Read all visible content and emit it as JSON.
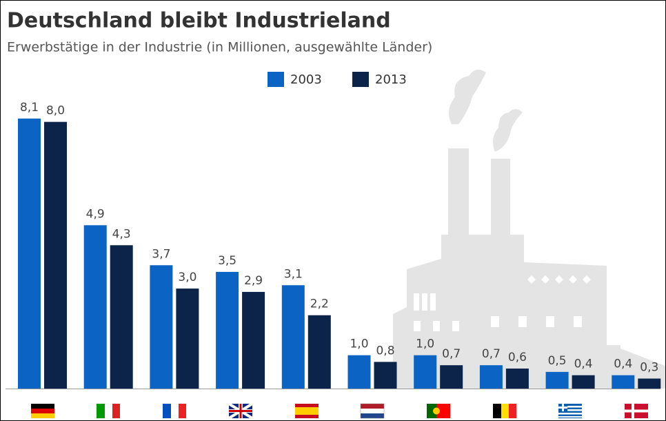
{
  "chart_data": {
    "type": "bar",
    "title": "Deutschland bleibt Industrieland",
    "subtitle": "Erwerbstätige in der Industrie (in Millionen, ausgewählte Länder)",
    "categories": [
      null,
      null,
      null,
      null,
      null,
      null,
      null,
      null,
      null,
      null
    ],
    "series": [
      {
        "name": "2003",
        "color": "#0b63c4",
        "values": [
          8.1,
          4.9,
          3.7,
          3.5,
          3.1,
          1.0,
          1.0,
          0.7,
          0.5,
          0.4
        ],
        "value_labels": [
          "8,1",
          "4,9",
          "3,7",
          "3,5",
          "3,1",
          "1,0",
          "1,0",
          "0,7",
          "0,5",
          "0,4"
        ]
      },
      {
        "name": "2013",
        "color": "#0c2449",
        "values": [
          8.0,
          4.3,
          3.0,
          2.9,
          2.2,
          0.8,
          0.7,
          0.6,
          0.4,
          0.3
        ],
        "value_labels": [
          "8,0",
          "4,3",
          "3,0",
          "2,9",
          "2,2",
          "0,8",
          "0,7",
          "0,6",
          "0,4",
          "0,3"
        ]
      }
    ]
  }
}
